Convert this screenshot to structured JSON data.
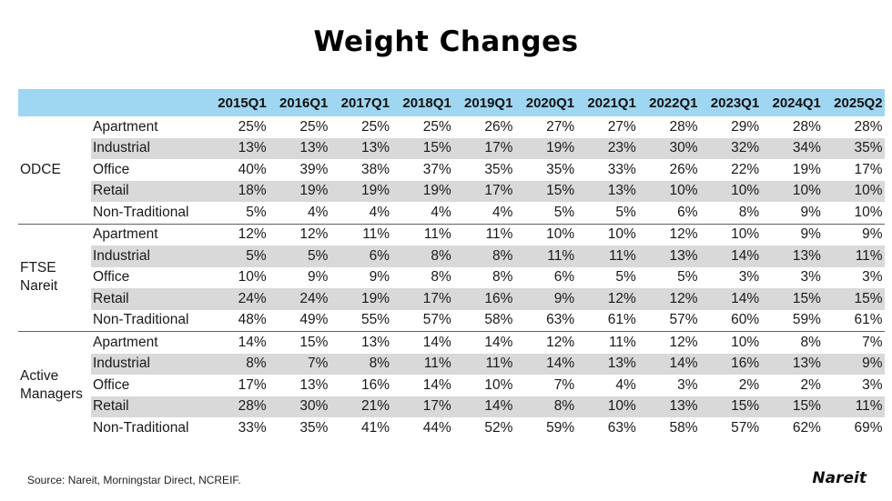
{
  "chart_data": {
    "type": "table",
    "title": "Weight Changes",
    "columns": [
      "2015Q1",
      "2016Q1",
      "2017Q1",
      "2018Q1",
      "2019Q1",
      "2020Q1",
      "2021Q1",
      "2022Q1",
      "2023Q1",
      "2024Q1",
      "2025Q2"
    ],
    "groups": [
      {
        "name": "ODCE",
        "rows": [
          {
            "sector": "Apartment",
            "values": [
              "25%",
              "25%",
              "25%",
              "25%",
              "26%",
              "27%",
              "27%",
              "28%",
              "29%",
              "28%",
              "28%"
            ]
          },
          {
            "sector": "Industrial",
            "values": [
              "13%",
              "13%",
              "13%",
              "15%",
              "17%",
              "19%",
              "23%",
              "30%",
              "32%",
              "34%",
              "35%"
            ]
          },
          {
            "sector": "Office",
            "values": [
              "40%",
              "39%",
              "38%",
              "37%",
              "35%",
              "35%",
              "33%",
              "26%",
              "22%",
              "19%",
              "17%"
            ]
          },
          {
            "sector": "Retail",
            "values": [
              "18%",
              "19%",
              "19%",
              "19%",
              "17%",
              "15%",
              "13%",
              "10%",
              "10%",
              "10%",
              "10%"
            ]
          },
          {
            "sector": "Non-Traditional",
            "values": [
              "5%",
              "4%",
              "4%",
              "4%",
              "4%",
              "5%",
              "5%",
              "6%",
              "8%",
              "9%",
              "10%"
            ]
          }
        ]
      },
      {
        "name": "FTSE Nareit",
        "rows": [
          {
            "sector": "Apartment",
            "values": [
              "12%",
              "12%",
              "11%",
              "11%",
              "11%",
              "10%",
              "10%",
              "12%",
              "10%",
              "9%",
              "9%"
            ]
          },
          {
            "sector": "Industrial",
            "values": [
              "5%",
              "5%",
              "6%",
              "8%",
              "8%",
              "11%",
              "11%",
              "13%",
              "14%",
              "13%",
              "11%"
            ]
          },
          {
            "sector": "Office",
            "values": [
              "10%",
              "9%",
              "9%",
              "8%",
              "8%",
              "6%",
              "5%",
              "5%",
              "3%",
              "3%",
              "3%"
            ]
          },
          {
            "sector": "Retail",
            "values": [
              "24%",
              "24%",
              "19%",
              "17%",
              "16%",
              "9%",
              "12%",
              "12%",
              "14%",
              "15%",
              "15%"
            ]
          },
          {
            "sector": "Non-Traditional",
            "values": [
              "48%",
              "49%",
              "55%",
              "57%",
              "58%",
              "63%",
              "61%",
              "57%",
              "60%",
              "59%",
              "61%"
            ]
          }
        ]
      },
      {
        "name": "Active Managers",
        "rows": [
          {
            "sector": "Apartment",
            "values": [
              "14%",
              "15%",
              "13%",
              "14%",
              "14%",
              "12%",
              "11%",
              "12%",
              "10%",
              "8%",
              "7%"
            ]
          },
          {
            "sector": "Industrial",
            "values": [
              "8%",
              "7%",
              "8%",
              "11%",
              "11%",
              "14%",
              "13%",
              "14%",
              "16%",
              "13%",
              "9%"
            ]
          },
          {
            "sector": "Office",
            "values": [
              "17%",
              "13%",
              "16%",
              "14%",
              "10%",
              "7%",
              "4%",
              "3%",
              "2%",
              "2%",
              "3%"
            ]
          },
          {
            "sector": "Retail",
            "values": [
              "28%",
              "30%",
              "21%",
              "17%",
              "14%",
              "8%",
              "10%",
              "13%",
              "15%",
              "15%",
              "11%"
            ]
          },
          {
            "sector": "Non-Traditional",
            "values": [
              "33%",
              "35%",
              "41%",
              "44%",
              "52%",
              "59%",
              "63%",
              "58%",
              "57%",
              "62%",
              "69%"
            ]
          }
        ]
      }
    ],
    "header_color": "#9fd6f1",
    "alt_row_color": "#d9d9d9"
  },
  "footer": {
    "source": "Source: Nareit, Morningstar Direct, NCREIF.",
    "logo": "Nareit"
  }
}
